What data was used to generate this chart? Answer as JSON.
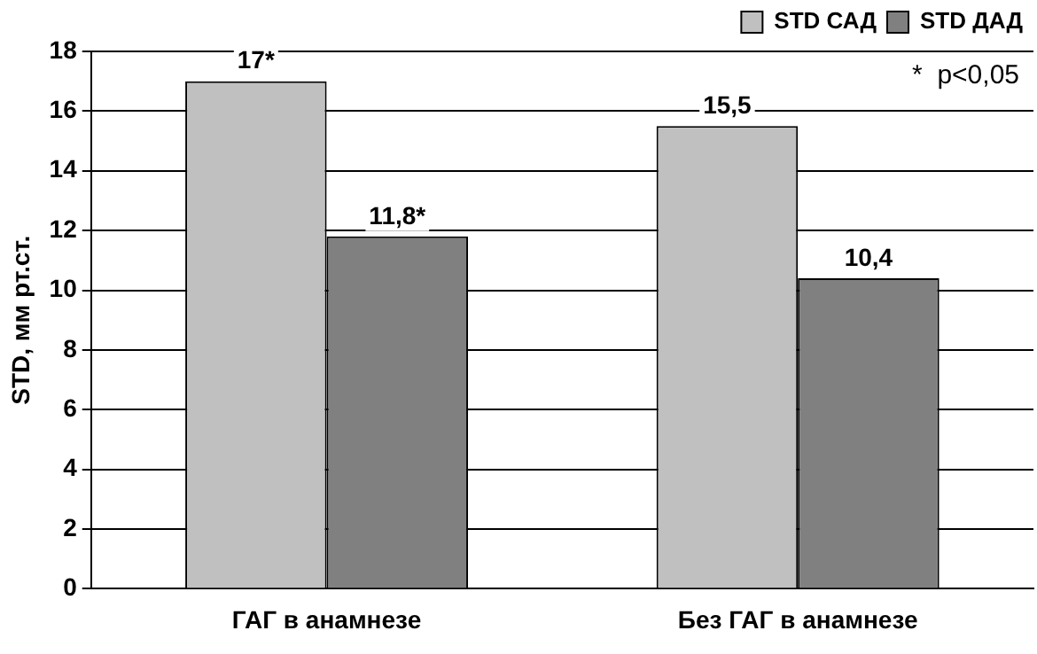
{
  "chart_data": {
    "type": "bar",
    "ylabel": "STD, мм рт.ст.",
    "categories": [
      "ГАГ в анамнезе",
      "Без ГАГ в анамнезе"
    ],
    "series": [
      {
        "name": "STD САД",
        "color": "#c0c0c0",
        "values": [
          17,
          15.5
        ],
        "value_labels": [
          "17*",
          "15,5"
        ]
      },
      {
        "name": "STD ДАД",
        "color": "#808080",
        "values": [
          11.8,
          10.4
        ],
        "value_labels": [
          "11,8*",
          "10,4"
        ]
      }
    ],
    "ylim": [
      0,
      18
    ],
    "yticks": [
      0,
      2,
      4,
      6,
      8,
      10,
      12,
      14,
      16,
      18
    ],
    "grid": "y",
    "legend": "top right",
    "annotations": [
      "*  p<0,05"
    ]
  }
}
